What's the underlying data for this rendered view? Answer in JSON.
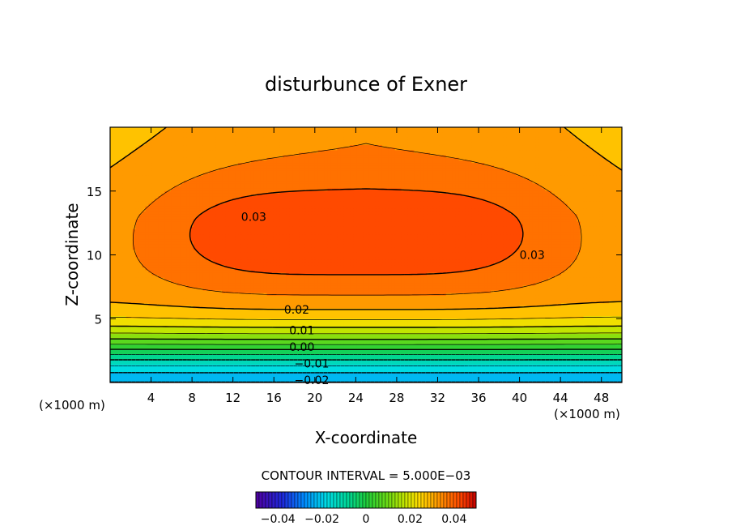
{
  "chart_data": {
    "type": "heatmap",
    "title": "disturbunce of Exner",
    "xlabel": "X-coordinate",
    "ylabel": "Z-coordinate",
    "x_unit_left": "(×1000 m)",
    "x_unit_right": "(×1000 m)",
    "xlim": [
      0,
      50
    ],
    "ylim": [
      0,
      20
    ],
    "x_ticks": [
      4,
      8,
      12,
      16,
      20,
      24,
      28,
      32,
      36,
      40,
      44,
      48
    ],
    "y_ticks": [
      5,
      10,
      15
    ],
    "contour_labels": [
      {
        "text": "0.03",
        "x": 12.8,
        "z": 13.0
      },
      {
        "text": "0.03",
        "x": 40.0,
        "z": 10.0
      },
      {
        "text": "0.02",
        "x": 17.0,
        "z": 5.7
      },
      {
        "text": "0.01",
        "x": 17.5,
        "z": 4.1
      },
      {
        "text": "0.00",
        "x": 17.5,
        "z": 2.8
      },
      {
        "text": "−0.01",
        "x": 18.0,
        "z": 1.5
      },
      {
        "text": "−0.02",
        "x": 18.0,
        "z": 0.2
      }
    ],
    "contour_interval_label": "CONTOUR INTERVAL = 5.000E−03",
    "colorbar": {
      "range": [
        -0.05,
        0.05
      ],
      "ticks": [
        {
          "value": -0.04,
          "label": "−0.04"
        },
        {
          "value": -0.02,
          "label": "−0.02"
        },
        {
          "value": 0,
          "label": "0"
        },
        {
          "value": 0.02,
          "label": "0.02"
        },
        {
          "value": 0.04,
          "label": "0.04"
        }
      ]
    }
  }
}
